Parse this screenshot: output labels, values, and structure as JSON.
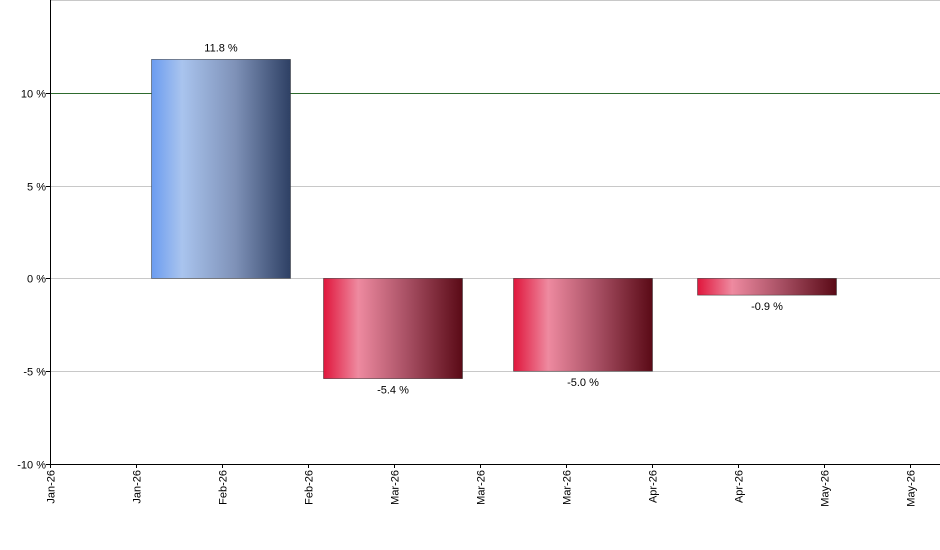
{
  "chart_data": {
    "type": "bar",
    "title": "",
    "xlabel": "",
    "ylabel": "",
    "ylim": [
      -10,
      15
    ],
    "y_ticks": [
      -10,
      -5,
      0,
      5,
      10
    ],
    "y_tick_labels": [
      "-10 %",
      "-5 %",
      "0 %",
      "5 %",
      "10 %"
    ],
    "x_tick_labels": [
      "Jan-26",
      "Jan-26",
      "Feb-26",
      "Feb-26",
      "Mar-26",
      "Mar-26",
      "Mar-26",
      "Apr-26",
      "Apr-26",
      "May-26",
      "May-26"
    ],
    "grid": true,
    "reference_line": {
      "value": 10,
      "color": "#2e6b2e"
    },
    "bars": [
      {
        "value": 11.8,
        "label": "11.8 %",
        "polarity": "positive"
      },
      {
        "value": -5.4,
        "label": "-5.4 %",
        "polarity": "negative"
      },
      {
        "value": -5.0,
        "label": "-5.0 %",
        "polarity": "negative"
      },
      {
        "value": -0.9,
        "label": "-0.9 %",
        "polarity": "negative"
      }
    ],
    "colors": {
      "positive": [
        "#6b9cf0",
        "#a9c4ee",
        "#7f92b8",
        "#2e4064"
      ],
      "negative": [
        "#e0163c",
        "#ee8aa0",
        "#a85064",
        "#5a0a16"
      ],
      "grid": "#c8c8c8",
      "axis": "#000000"
    }
  }
}
